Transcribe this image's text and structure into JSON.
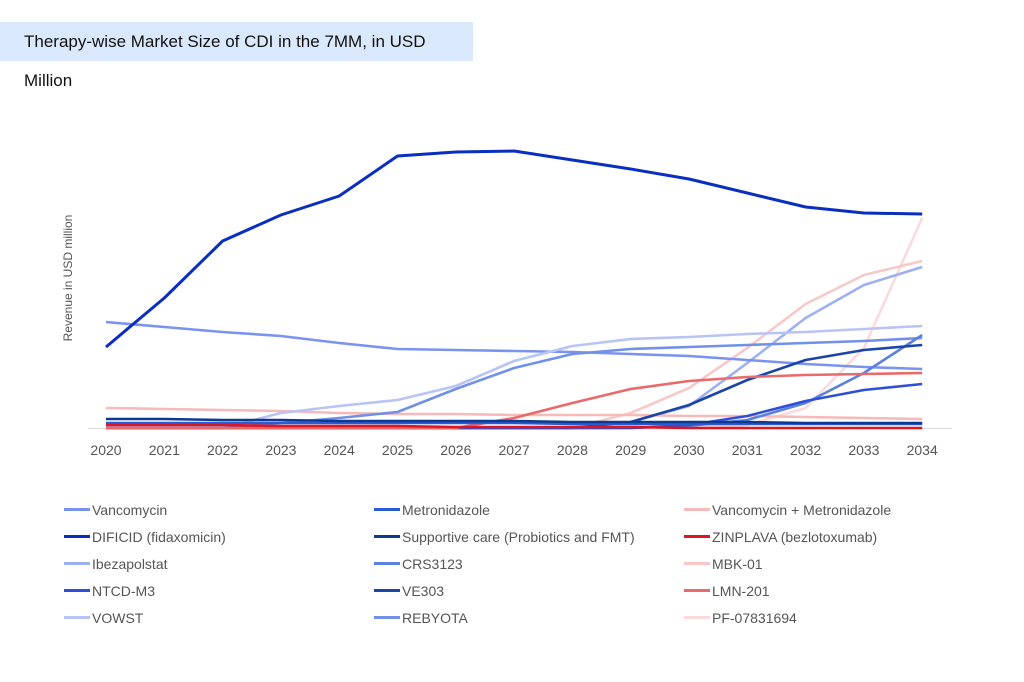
{
  "chart_data": {
    "type": "line",
    "title": "Therapy-wise Market Size of CDI in the 7MM, in USD Million",
    "ylabel": "Revenue in USD million",
    "xlabel": "",
    "x": [
      "2020",
      "2021",
      "2022",
      "2023",
      "2024",
      "2025",
      "2026",
      "2027",
      "2028",
      "2029",
      "2030",
      "2031",
      "2032",
      "2033",
      "2034"
    ],
    "grid": false,
    "legend_position": "bottom",
    "series": [
      {
        "name": "Vancomycin",
        "color": "#7b93f0",
        "values": [
          106,
          101,
          96,
          92,
          85,
          79,
          78,
          77,
          76,
          74,
          72,
          68,
          64,
          61,
          59
        ]
      },
      {
        "name": "Metronidazole",
        "color": "#2a5bd7",
        "values": [
          5,
          5,
          5,
          5,
          5,
          5,
          5,
          5,
          4,
          4,
          4,
          4,
          4,
          4,
          4
        ]
      },
      {
        "name": "Vancomycin + Metronidazole",
        "color": "#f7b9b9",
        "values": [
          20,
          19,
          18,
          17,
          15,
          14,
          14,
          13,
          13,
          13,
          12,
          12,
          11,
          10,
          9
        ]
      },
      {
        "name": "DIFICID (fidaxomicin)",
        "color": "#0a2fc0",
        "values": [
          81,
          130,
          187,
          213,
          232,
          272,
          276,
          277,
          268,
          259,
          249,
          235,
          221,
          215,
          214
        ]
      },
      {
        "name": "Supportive care (Probiotics and FMT)",
        "color": "#0d3a8f",
        "values": [
          9,
          9,
          8,
          8,
          7,
          7,
          7,
          7,
          6,
          6,
          6,
          6,
          5,
          5,
          5
        ]
      },
      {
        "name": "ZINPLAVA (bezlotoxumab)",
        "color": "#e0161e",
        "values": [
          3,
          3,
          3,
          2,
          2,
          2,
          1,
          1,
          1,
          1,
          0,
          0,
          0,
          0,
          0
        ]
      },
      {
        "name": "Ibezapolstat",
        "color": "#9fb0f2",
        "values": [
          0,
          0,
          0,
          0,
          0,
          0,
          0,
          0,
          0,
          6,
          22,
          65,
          110,
          143,
          161
        ]
      },
      {
        "name": "CRS3123",
        "color": "#5a80e0",
        "values": [
          0,
          0,
          0,
          0,
          0,
          0,
          0,
          0,
          0,
          0,
          2,
          8,
          25,
          55,
          93
        ]
      },
      {
        "name": "MBK-01",
        "color": "#f8c8c8",
        "values": [
          0,
          0,
          0,
          0,
          0,
          0,
          0,
          0,
          0,
          15,
          40,
          80,
          124,
          153,
          167
        ]
      },
      {
        "name": "NTCD-M3",
        "color": "#2f4fd8",
        "values": [
          0,
          0,
          0,
          0,
          0,
          0,
          0,
          0,
          0,
          0,
          3,
          12,
          27,
          38,
          44
        ]
      },
      {
        "name": "VE303",
        "color": "#1a45a8",
        "values": [
          0,
          0,
          0,
          0,
          0,
          0,
          0,
          0,
          0,
          6,
          23,
          48,
          68,
          78,
          83
        ]
      },
      {
        "name": "LMN-201",
        "color": "#e86a6a",
        "values": [
          0,
          0,
          0,
          0,
          0,
          0,
          0,
          10,
          25,
          39,
          47,
          51,
          53,
          54,
          55
        ]
      },
      {
        "name": "VOWST",
        "color": "#b8c4f6",
        "values": [
          0,
          0,
          0,
          15,
          22,
          28,
          42,
          67,
          82,
          89,
          91,
          94,
          96,
          99,
          102
        ]
      },
      {
        "name": "REBYOTA",
        "color": "#7090ea",
        "values": [
          0,
          0,
          0,
          5,
          10,
          16,
          39,
          60,
          74,
          79,
          81,
          83,
          85,
          87,
          90
        ]
      },
      {
        "name": "PF-07831694",
        "color": "#fadadd",
        "values": [
          0,
          0,
          0,
          0,
          0,
          0,
          0,
          0,
          0,
          0,
          0,
          3,
          20,
          80,
          210
        ]
      }
    ]
  }
}
